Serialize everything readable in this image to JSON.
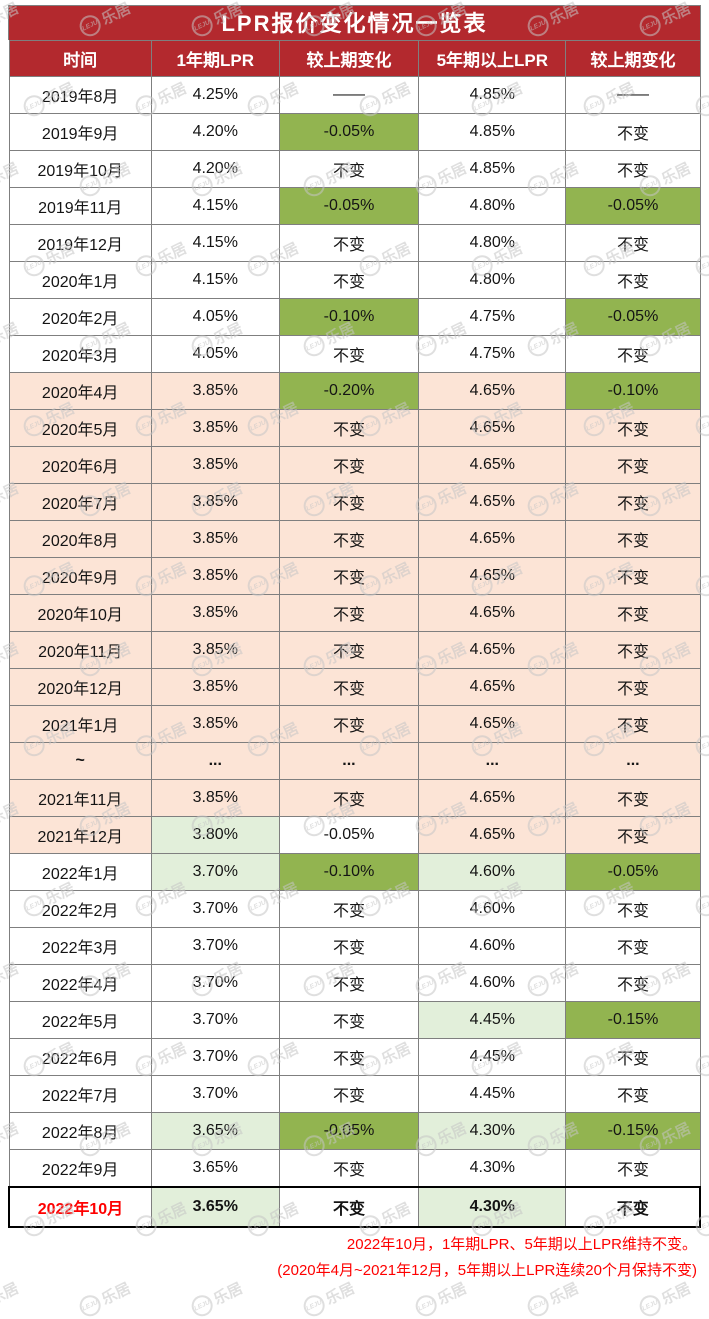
{
  "colors": {
    "header_red": "#b3292e",
    "cut_green": "#92b450",
    "hold_peach": "#fce4d6",
    "new_light_green": "#e2efda",
    "note_red": "#fe0000",
    "grid_line": "#7f7f7f"
  },
  "watermark": {
    "logo": "LEJU",
    "brand": "乐居"
  },
  "chart_data": {
    "type": "table",
    "title": "LPR报价变化情况一览表",
    "columns": [
      "时间",
      "1年期LPR",
      "较上期变化",
      "5年期以上LPR",
      "较上期变化"
    ],
    "rows": [
      {
        "cells": [
          {
            "t": "2019年8月"
          },
          {
            "t": "4.25%"
          },
          {
            "t": "——"
          },
          {
            "t": "4.85%"
          },
          {
            "t": "——"
          }
        ]
      },
      {
        "cells": [
          {
            "t": "2019年9月"
          },
          {
            "t": "4.20%"
          },
          {
            "t": "-0.05%",
            "bg": "green"
          },
          {
            "t": "4.85%"
          },
          {
            "t": "不变"
          }
        ]
      },
      {
        "cells": [
          {
            "t": "2019年10月"
          },
          {
            "t": "4.20%"
          },
          {
            "t": "不变"
          },
          {
            "t": "4.85%"
          },
          {
            "t": "不变"
          }
        ]
      },
      {
        "cells": [
          {
            "t": "2019年11月"
          },
          {
            "t": "4.15%"
          },
          {
            "t": "-0.05%",
            "bg": "green"
          },
          {
            "t": "4.80%"
          },
          {
            "t": "-0.05%",
            "bg": "green"
          }
        ]
      },
      {
        "cells": [
          {
            "t": "2019年12月"
          },
          {
            "t": "4.15%"
          },
          {
            "t": "不变"
          },
          {
            "t": "4.80%"
          },
          {
            "t": "不变"
          }
        ]
      },
      {
        "cells": [
          {
            "t": "2020年1月"
          },
          {
            "t": "4.15%"
          },
          {
            "t": "不变"
          },
          {
            "t": "4.80%"
          },
          {
            "t": "不变"
          }
        ]
      },
      {
        "cells": [
          {
            "t": "2020年2月"
          },
          {
            "t": "4.05%"
          },
          {
            "t": "-0.10%",
            "bg": "green"
          },
          {
            "t": "4.75%"
          },
          {
            "t": "-0.05%",
            "bg": "green"
          }
        ]
      },
      {
        "cells": [
          {
            "t": "2020年3月"
          },
          {
            "t": "4.05%"
          },
          {
            "t": "不变"
          },
          {
            "t": "4.75%"
          },
          {
            "t": "不变"
          }
        ]
      },
      {
        "cells": [
          {
            "t": "2020年4月",
            "bg": "peach"
          },
          {
            "t": "3.85%",
            "bg": "peach"
          },
          {
            "t": "-0.20%",
            "bg": "green"
          },
          {
            "t": "4.65%",
            "bg": "peach"
          },
          {
            "t": "-0.10%",
            "bg": "green"
          }
        ]
      },
      {
        "cells": [
          {
            "t": "2020年5月",
            "bg": "peach"
          },
          {
            "t": "3.85%",
            "bg": "peach"
          },
          {
            "t": "不变",
            "bg": "peach"
          },
          {
            "t": "4.65%",
            "bg": "peach"
          },
          {
            "t": "不变",
            "bg": "peach"
          }
        ]
      },
      {
        "cells": [
          {
            "t": "2020年6月",
            "bg": "peach"
          },
          {
            "t": "3.85%",
            "bg": "peach"
          },
          {
            "t": "不变",
            "bg": "peach"
          },
          {
            "t": "4.65%",
            "bg": "peach"
          },
          {
            "t": "不变",
            "bg": "peach"
          }
        ]
      },
      {
        "cells": [
          {
            "t": "2020年7月",
            "bg": "peach"
          },
          {
            "t": "3.85%",
            "bg": "peach"
          },
          {
            "t": "不变",
            "bg": "peach"
          },
          {
            "t": "4.65%",
            "bg": "peach"
          },
          {
            "t": "不变",
            "bg": "peach"
          }
        ]
      },
      {
        "cells": [
          {
            "t": "2020年8月",
            "bg": "peach"
          },
          {
            "t": "3.85%",
            "bg": "peach"
          },
          {
            "t": "不变",
            "bg": "peach"
          },
          {
            "t": "4.65%",
            "bg": "peach"
          },
          {
            "t": "不变",
            "bg": "peach"
          }
        ]
      },
      {
        "cells": [
          {
            "t": "2020年9月",
            "bg": "peach"
          },
          {
            "t": "3.85%",
            "bg": "peach"
          },
          {
            "t": "不变",
            "bg": "peach"
          },
          {
            "t": "4.65%",
            "bg": "peach"
          },
          {
            "t": "不变",
            "bg": "peach"
          }
        ]
      },
      {
        "cells": [
          {
            "t": "2020年10月",
            "bg": "peach"
          },
          {
            "t": "3.85%",
            "bg": "peach"
          },
          {
            "t": "不变",
            "bg": "peach"
          },
          {
            "t": "4.65%",
            "bg": "peach"
          },
          {
            "t": "不变",
            "bg": "peach"
          }
        ]
      },
      {
        "cells": [
          {
            "t": "2020年11月",
            "bg": "peach"
          },
          {
            "t": "3.85%",
            "bg": "peach"
          },
          {
            "t": "不变",
            "bg": "peach"
          },
          {
            "t": "4.65%",
            "bg": "peach"
          },
          {
            "t": "不变",
            "bg": "peach"
          }
        ]
      },
      {
        "cells": [
          {
            "t": "2020年12月",
            "bg": "peach"
          },
          {
            "t": "3.85%",
            "bg": "peach"
          },
          {
            "t": "不变",
            "bg": "peach"
          },
          {
            "t": "4.65%",
            "bg": "peach"
          },
          {
            "t": "不变",
            "bg": "peach"
          }
        ]
      },
      {
        "cells": [
          {
            "t": "2021年1月",
            "bg": "peach"
          },
          {
            "t": "3.85%",
            "bg": "peach"
          },
          {
            "t": "不变",
            "bg": "peach"
          },
          {
            "t": "4.65%",
            "bg": "peach"
          },
          {
            "t": "不变",
            "bg": "peach"
          }
        ]
      },
      {
        "bold": true,
        "cells": [
          {
            "t": "~",
            "bg": "peach"
          },
          {
            "t": "...",
            "bg": "peach"
          },
          {
            "t": "...",
            "bg": "peach"
          },
          {
            "t": "...",
            "bg": "peach"
          },
          {
            "t": "...",
            "bg": "peach"
          }
        ]
      },
      {
        "cells": [
          {
            "t": "2021年11月",
            "bg": "peach"
          },
          {
            "t": "3.85%",
            "bg": "peach"
          },
          {
            "t": "不变",
            "bg": "peach"
          },
          {
            "t": "4.65%",
            "bg": "peach"
          },
          {
            "t": "不变",
            "bg": "peach"
          }
        ]
      },
      {
        "cells": [
          {
            "t": "2021年12月",
            "bg": "peach"
          },
          {
            "t": "3.80%",
            "bg": "lightgreen"
          },
          {
            "t": "-0.05%"
          },
          {
            "t": "4.65%",
            "bg": "peach"
          },
          {
            "t": "不变",
            "bg": "peach"
          }
        ]
      },
      {
        "cells": [
          {
            "t": "2022年1月"
          },
          {
            "t": "3.70%",
            "bg": "lightgreen"
          },
          {
            "t": "-0.10%",
            "bg": "green"
          },
          {
            "t": "4.60%",
            "bg": "lightgreen"
          },
          {
            "t": "-0.05%",
            "bg": "green"
          }
        ]
      },
      {
        "cells": [
          {
            "t": "2022年2月"
          },
          {
            "t": "3.70%"
          },
          {
            "t": "不变"
          },
          {
            "t": "4.60%"
          },
          {
            "t": "不变"
          }
        ]
      },
      {
        "cells": [
          {
            "t": "2022年3月"
          },
          {
            "t": "3.70%"
          },
          {
            "t": "不变"
          },
          {
            "t": "4.60%"
          },
          {
            "t": "不变"
          }
        ]
      },
      {
        "cells": [
          {
            "t": "2022年4月"
          },
          {
            "t": "3.70%"
          },
          {
            "t": "不变"
          },
          {
            "t": "4.60%"
          },
          {
            "t": "不变"
          }
        ]
      },
      {
        "cells": [
          {
            "t": "2022年5月"
          },
          {
            "t": "3.70%"
          },
          {
            "t": "不变"
          },
          {
            "t": "4.45%",
            "bg": "lightgreen"
          },
          {
            "t": "-0.15%",
            "bg": "green"
          }
        ]
      },
      {
        "cells": [
          {
            "t": "2022年6月"
          },
          {
            "t": "3.70%"
          },
          {
            "t": "不变"
          },
          {
            "t": "4.45%"
          },
          {
            "t": "不变"
          }
        ]
      },
      {
        "cells": [
          {
            "t": "2022年7月"
          },
          {
            "t": "3.70%"
          },
          {
            "t": "不变"
          },
          {
            "t": "4.45%"
          },
          {
            "t": "不变"
          }
        ]
      },
      {
        "cells": [
          {
            "t": "2022年8月"
          },
          {
            "t": "3.65%",
            "bg": "lightgreen"
          },
          {
            "t": "-0.05%",
            "bg": "green"
          },
          {
            "t": "4.30%",
            "bg": "lightgreen"
          },
          {
            "t": "-0.15%",
            "bg": "green"
          }
        ]
      },
      {
        "cells": [
          {
            "t": "2022年9月"
          },
          {
            "t": "3.65%"
          },
          {
            "t": "不变"
          },
          {
            "t": "4.30%"
          },
          {
            "t": "不变"
          }
        ]
      },
      {
        "final": true,
        "bold": true,
        "cells": [
          {
            "t": "2022年10月",
            "red": true
          },
          {
            "t": "3.65%",
            "bg": "lightgreen"
          },
          {
            "t": "不变"
          },
          {
            "t": "4.30%",
            "bg": "lightgreen"
          },
          {
            "t": "不变"
          }
        ]
      }
    ],
    "notes": [
      "2022年10月，1年期LPR、5年期以上LPR维持不变。",
      "(2020年4月~2021年12月，5年期以上LPR连续20个月保持不变)"
    ]
  }
}
